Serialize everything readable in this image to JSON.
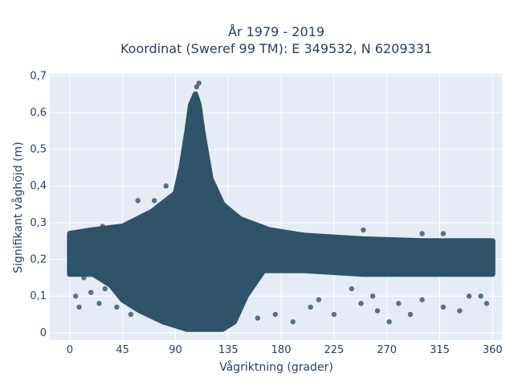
{
  "chart_data": {
    "type": "scatter",
    "title": "År 1979 - 2019",
    "subtitle": "Koordinat (Sweref 99 TM): E 349532, N 6209331",
    "xlabel": "Vågriktning (grader)",
    "ylabel": "Signifikant våghöjd (m)",
    "xlim": [
      -17,
      368
    ],
    "ylim": [
      -0.02,
      0.705
    ],
    "x_ticks": [
      0,
      45,
      90,
      135,
      180,
      225,
      270,
      315,
      360
    ],
    "x_tick_labels": [
      "0",
      "45",
      "90",
      "135",
      "180",
      "225",
      "270",
      "315",
      "360"
    ],
    "y_ticks": [
      0,
      0.1,
      0.2,
      0.3,
      0.4,
      0.5,
      0.6,
      0.7
    ],
    "y_tick_labels": [
      "0",
      "0,1",
      "0,2",
      "0,3",
      "0,4",
      "0,5",
      "0,6",
      "0,7"
    ],
    "grid": true,
    "plot_background": "#e5ecf6",
    "marker_color": "#2f5469",
    "series": [
      {
        "density_outline": [
          [
            0,
            0.16
          ],
          [
            0,
            0.27
          ],
          [
            20,
            0.28
          ],
          [
            45,
            0.29
          ],
          [
            70,
            0.33
          ],
          [
            90,
            0.38
          ],
          [
            95,
            0.45
          ],
          [
            100,
            0.55
          ],
          [
            103,
            0.62
          ],
          [
            107,
            0.65
          ],
          [
            110,
            0.62
          ],
          [
            113,
            0.55
          ],
          [
            120,
            0.42
          ],
          [
            130,
            0.35
          ],
          [
            145,
            0.31
          ],
          [
            170,
            0.28
          ],
          [
            200,
            0.265
          ],
          [
            250,
            0.255
          ],
          [
            300,
            0.25
          ],
          [
            360,
            0.25
          ],
          [
            360,
            0.16
          ],
          [
            300,
            0.16
          ],
          [
            250,
            0.16
          ],
          [
            200,
            0.17
          ],
          [
            165,
            0.17
          ],
          [
            150,
            0.1
          ],
          [
            140,
            0.03
          ],
          [
            130,
            0.01
          ],
          [
            100,
            0.01
          ],
          [
            80,
            0.03
          ],
          [
            60,
            0.06
          ],
          [
            45,
            0.09
          ],
          [
            35,
            0.13
          ],
          [
            20,
            0.16
          ]
        ],
        "sample_points": [
          [
            5,
            0.1
          ],
          [
            8,
            0.07
          ],
          [
            12,
            0.15
          ],
          [
            18,
            0.11
          ],
          [
            25,
            0.08
          ],
          [
            30,
            0.12
          ],
          [
            28,
            0.29
          ],
          [
            33,
            0.28
          ],
          [
            40,
            0.07
          ],
          [
            52,
            0.05
          ],
          [
            58,
            0.36
          ],
          [
            72,
            0.36
          ],
          [
            82,
            0.4
          ],
          [
            108,
            0.67
          ],
          [
            110,
            0.68
          ],
          [
            160,
            0.04
          ],
          [
            175,
            0.05
          ],
          [
            190,
            0.03
          ],
          [
            205,
            0.07
          ],
          [
            212,
            0.09
          ],
          [
            225,
            0.05
          ],
          [
            240,
            0.12
          ],
          [
            248,
            0.08
          ],
          [
            258,
            0.1
          ],
          [
            262,
            0.06
          ],
          [
            272,
            0.03
          ],
          [
            280,
            0.08
          ],
          [
            290,
            0.05
          ],
          [
            300,
            0.09
          ],
          [
            318,
            0.07
          ],
          [
            332,
            0.06
          ],
          [
            340,
            0.1
          ],
          [
            350,
            0.1
          ],
          [
            355,
            0.08
          ],
          [
            250,
            0.28
          ],
          [
            300,
            0.27
          ],
          [
            318,
            0.27
          ]
        ]
      }
    ]
  }
}
